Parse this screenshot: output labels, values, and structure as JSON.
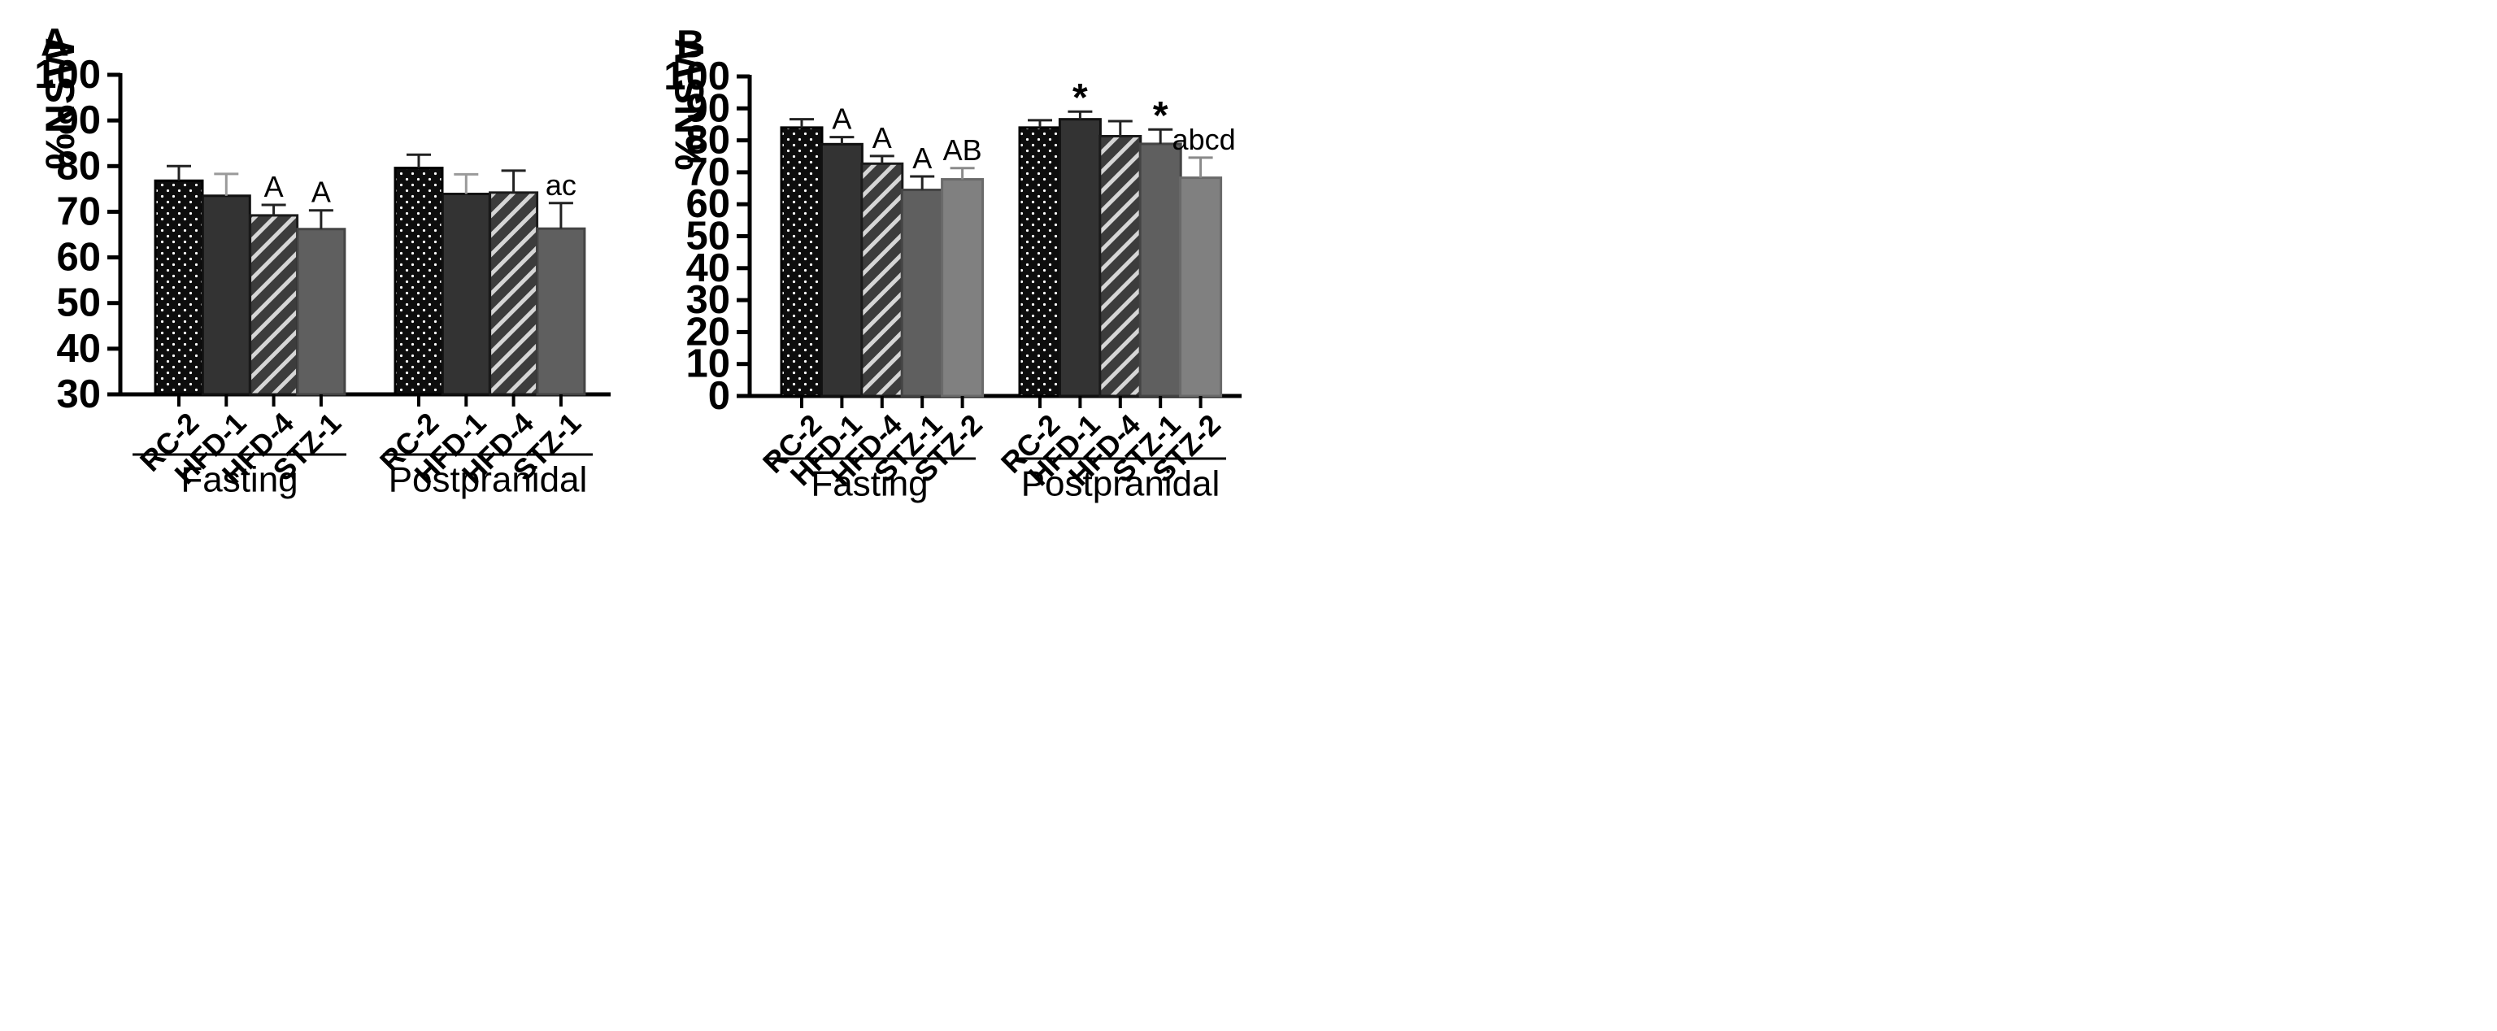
{
  "chart_data": [
    {
      "type": "bar",
      "panel_label": "A",
      "ylabel": "%NSW",
      "ylim": [
        30,
        100
      ],
      "yticks": [
        "30",
        "40",
        "50",
        "60",
        "70",
        "80",
        "90",
        "100"
      ],
      "groups": [
        {
          "label": "Fasting",
          "bars": [
            {
              "category": "RC-2",
              "value": 76.8,
              "error": 3.2,
              "annotation": "",
              "style": "dotted"
            },
            {
              "category": "HFD-1",
              "value": 73.5,
              "error": 4.8,
              "annotation": "",
              "style": "dark"
            },
            {
              "category": "HFD-4",
              "value": 69.2,
              "error": 2.3,
              "annotation": "A",
              "style": "hatched"
            },
            {
              "category": "STZ-1",
              "value": 66.2,
              "error": 4.1,
              "annotation": "A",
              "style": "medium"
            }
          ]
        },
        {
          "label": "Postpranidal",
          "bars": [
            {
              "category": "RC-2",
              "value": 79.6,
              "error": 2.9,
              "annotation": "",
              "style": "dotted"
            },
            {
              "category": "HFD-1",
              "value": 73.9,
              "error": 4.3,
              "annotation": "",
              "style": "dark"
            },
            {
              "category": "HFD-4",
              "value": 74.2,
              "error": 4.8,
              "annotation": "",
              "style": "hatched"
            },
            {
              "category": "STZ-1",
              "value": 66.3,
              "error": 5.6,
              "annotation": "ac",
              "style": "medium"
            }
          ]
        }
      ]
    },
    {
      "type": "bar",
      "panel_label": "B",
      "ylabel": "%NSW",
      "ylim": [
        0,
        100
      ],
      "yticks": [
        "0",
        "10",
        "20",
        "30",
        "40",
        "50",
        "60",
        "70",
        "80",
        "90",
        "100"
      ],
      "groups": [
        {
          "label": "Fasting",
          "bars": [
            {
              "category": "RC-2",
              "value": 84.0,
              "error": 2.6,
              "annotation": "",
              "style": "dotted"
            },
            {
              "category": "HFD-1",
              "value": 78.8,
              "error": 2.2,
              "annotation": "A",
              "style": "dark"
            },
            {
              "category": "HFD-4",
              "value": 72.7,
              "error": 2.4,
              "annotation": "A",
              "style": "hatched"
            },
            {
              "category": "STZ-1",
              "value": 64.5,
              "error": 4.2,
              "annotation": "A",
              "style": "medium"
            },
            {
              "category": "STZ-2",
              "value": 67.8,
              "error": 3.5,
              "annotation": "AB",
              "style": "light"
            }
          ]
        },
        {
          "label": "Postpranidal",
          "bars": [
            {
              "category": "RC-2",
              "value": 84.0,
              "error": 2.3,
              "annotation": "",
              "style": "dotted"
            },
            {
              "category": "HFD-1",
              "value": 86.6,
              "error": 2.4,
              "annotation": "*",
              "style": "dark"
            },
            {
              "category": "HFD-4",
              "value": 81.3,
              "error": 4.7,
              "annotation": "",
              "style": "hatched"
            },
            {
              "category": "STZ-1",
              "value": 78.9,
              "error": 4.5,
              "annotation": "*",
              "style": "medium"
            },
            {
              "category": "STZ-2",
              "value": 68.3,
              "error": 6.3,
              "annotation": "abcd",
              "style": "light"
            }
          ]
        }
      ]
    }
  ],
  "colors": {
    "dotted_fill": "#0d0d0d",
    "dark_fill": "#333333",
    "hatched_fill": "#4a4a4a",
    "medium_fill": "#5f5f5f",
    "light_fill": "#808080",
    "axis": "#000000"
  }
}
